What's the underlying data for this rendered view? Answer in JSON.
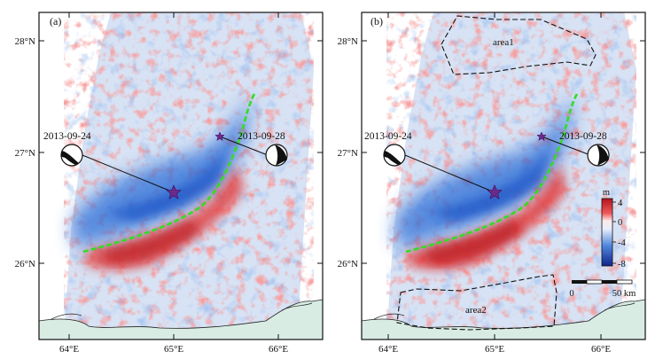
{
  "colors": {
    "positive": "#d8262a",
    "negative": "#1f56c8",
    "fault": "#33dd22",
    "epicenter": "#6a2a8a",
    "land": "#d8ece4",
    "frame": "#111111"
  },
  "axes": {
    "lat_ticks": [
      "28°N",
      "27°N",
      "26°N"
    ],
    "lon_ticks": [
      "64°E",
      "65°E",
      "66°E"
    ]
  },
  "panels": [
    {
      "label": "(a)",
      "events": [
        {
          "date": "2013-09-24"
        },
        {
          "date": "2013-09-28"
        }
      ]
    },
    {
      "label": "(b)",
      "events": [
        {
          "date": "2013-09-24"
        },
        {
          "date": "2013-09-28"
        }
      ],
      "areas": [
        "area1",
        "area2"
      ],
      "colorbar": {
        "unit": "m",
        "ticks": [
          "4",
          "0",
          "-4",
          "-8"
        ]
      },
      "scalebar": {
        "start": "0",
        "end": "50 km"
      }
    }
  ]
}
